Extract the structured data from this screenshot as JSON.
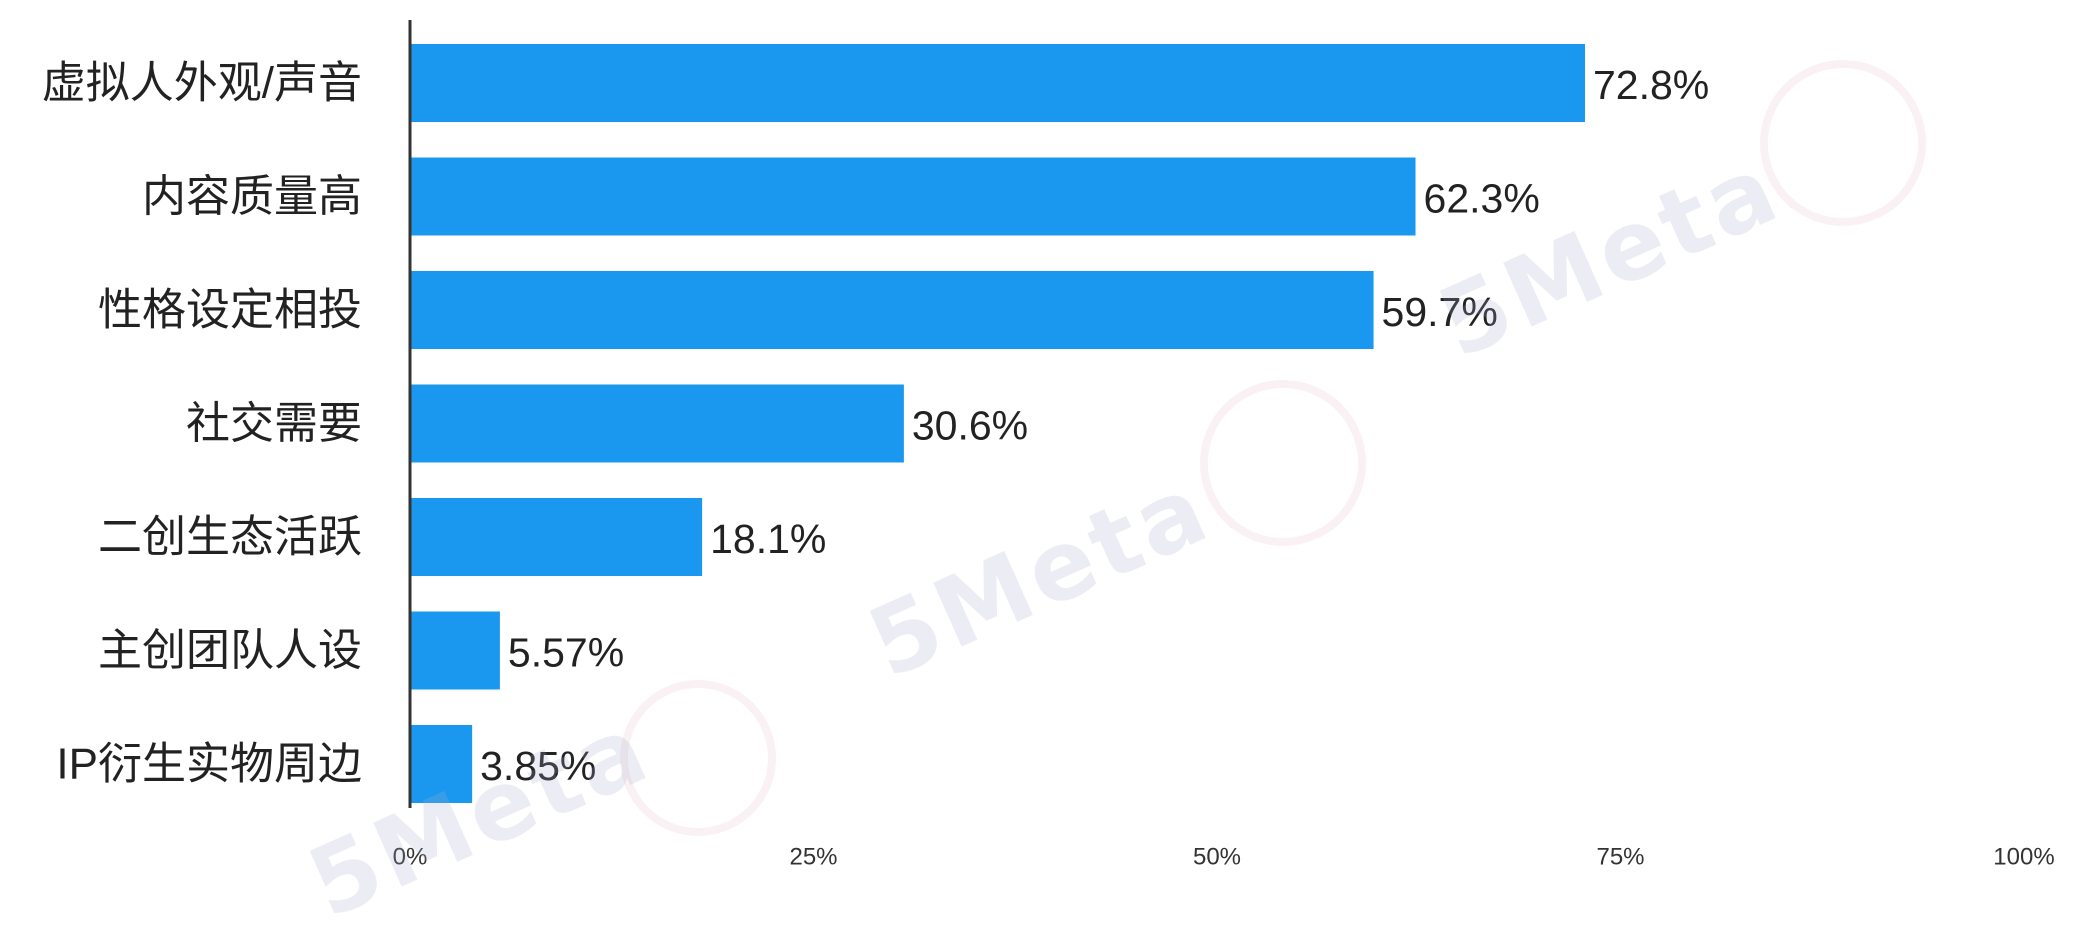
{
  "watermark": "5Meta",
  "colors": {
    "bar": "#1a98ef",
    "axis": "#333333",
    "text": "#222222"
  },
  "chart_data": {
    "type": "bar",
    "orientation": "horizontal",
    "categories": [
      "虚拟人外观/声音",
      "内容质量高",
      "性格设定相投",
      "社交需要",
      "二创生态活跃",
      "主创团队人设",
      "IP衍生实物周边"
    ],
    "values": [
      72.8,
      62.3,
      59.7,
      30.6,
      18.1,
      5.57,
      3.85
    ],
    "value_labels": [
      "72.8%",
      "62.3%",
      "59.7%",
      "30.6%",
      "18.1%",
      "5.57%",
      "3.85%"
    ],
    "xticks": [
      "0%",
      "25%",
      "50%",
      "75%",
      "100%"
    ],
    "xtick_values": [
      0,
      25,
      50,
      75,
      100
    ],
    "xlim": [
      0,
      100
    ],
    "title": "",
    "xlabel": "",
    "ylabel": "",
    "grid": false,
    "legend": "none"
  }
}
